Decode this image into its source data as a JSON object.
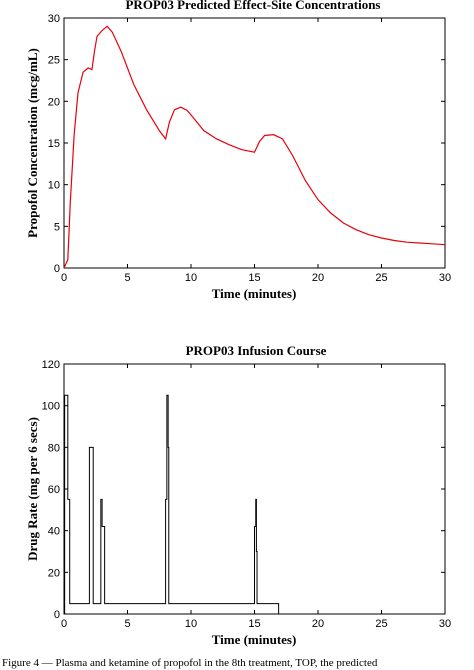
{
  "caption": "Figure 4 — Plasma and ketamine of propofol in the 8th treatment, TOP, the predicted",
  "chart_data": [
    {
      "type": "line",
      "title": "PROP03 Predicted Effect-Site Concentrations",
      "xlabel": "Time (minutes)",
      "ylabel": "Propofol Concentration (mcg/mL)",
      "xlim": [
        0,
        30
      ],
      "ylim": [
        0,
        30
      ],
      "xticks": [
        0,
        5,
        10,
        15,
        20,
        25,
        30
      ],
      "yticks": [
        0,
        5,
        10,
        15,
        20,
        25,
        30
      ],
      "grid": false,
      "color": "#e8000b",
      "series": [
        {
          "x": [
            0,
            0.3,
            0.5,
            0.8,
            1.1,
            1.5,
            1.9,
            2.2,
            2.4,
            2.6,
            3.0,
            3.4,
            3.8,
            4.5,
            5.5,
            6.5,
            7.5,
            8.0,
            8.3,
            8.7,
            9.2,
            9.7,
            10.2,
            11,
            12,
            13,
            14,
            15,
            15.4,
            15.8,
            16.5,
            17.2,
            18,
            19,
            20,
            21,
            22,
            23,
            24,
            25,
            26,
            27,
            28,
            29,
            30
          ],
          "y": [
            0,
            1,
            8,
            16,
            21,
            23.5,
            24,
            23.8,
            26,
            27.8,
            28.5,
            29,
            28.3,
            26,
            22,
            19,
            16.5,
            15.5,
            17.5,
            19,
            19.3,
            18.9,
            18,
            16.5,
            15.5,
            14.8,
            14.2,
            13.9,
            15.2,
            15.9,
            16,
            15.5,
            13.5,
            10.5,
            8.2,
            6.6,
            5.4,
            4.6,
            4.0,
            3.6,
            3.3,
            3.1,
            3.0,
            2.9,
            2.8
          ]
        }
      ]
    },
    {
      "type": "line",
      "title": "PROP03 Infusion Course",
      "xlabel": "Time (minutes)",
      "ylabel": "Drug Rate (mg per 6 secs)",
      "xlim": [
        0,
        30
      ],
      "ylim": [
        0,
        120
      ],
      "xticks": [
        0,
        5,
        10,
        15,
        20,
        25,
        30
      ],
      "yticks": [
        0,
        20,
        40,
        60,
        80,
        100,
        120
      ],
      "grid": false,
      "color": "#000000",
      "series": [
        {
          "x": [
            0,
            0.05,
            0.05,
            0.3,
            0.3,
            0.45,
            0.45,
            2.0,
            2.0,
            2.3,
            2.3,
            2.9,
            2.9,
            3.0,
            3.0,
            3.2,
            3.2,
            3.3,
            3.3,
            8.0,
            8.0,
            8.1,
            8.1,
            8.2,
            8.2,
            8.25,
            8.25,
            15.0,
            15.0,
            15.1,
            15.1,
            15.15,
            15.15,
            15.2,
            15.2,
            16.9,
            16.9,
            30
          ],
          "y": [
            0,
            0,
            105,
            105,
            55,
            55,
            5,
            5,
            80,
            80,
            5,
            5,
            55,
            55,
            42,
            42,
            5,
            5,
            5,
            5,
            55,
            55,
            105,
            105,
            80,
            80,
            5,
            5,
            42,
            42,
            55,
            55,
            30,
            30,
            5,
            5,
            0,
            0
          ]
        }
      ]
    }
  ]
}
